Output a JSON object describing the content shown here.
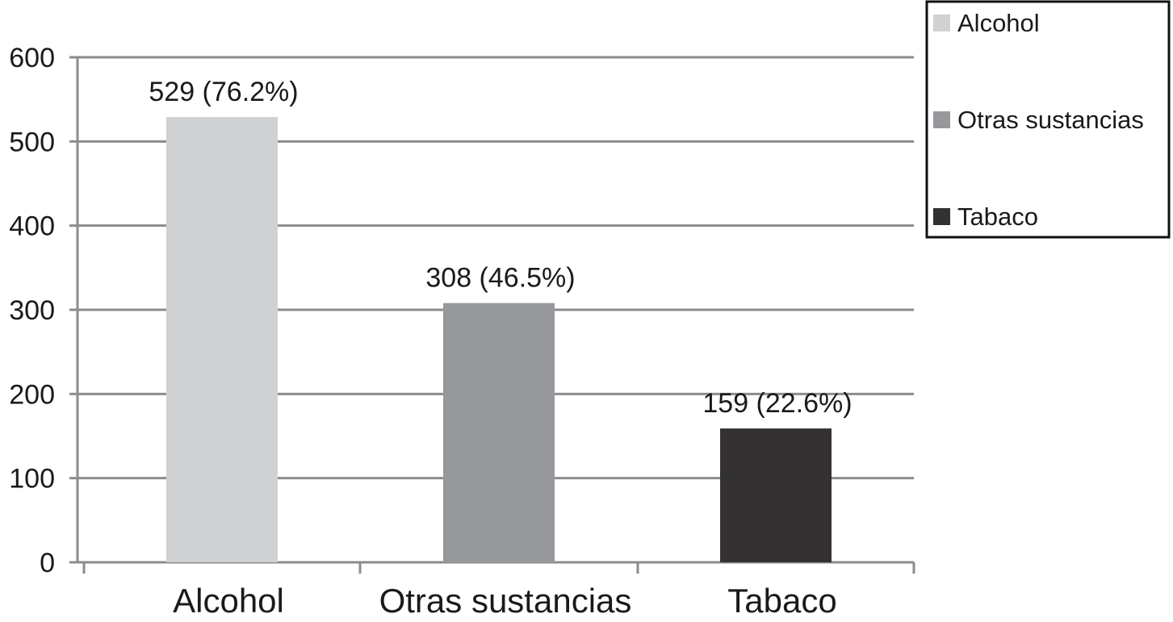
{
  "chart_data": {
    "type": "bar",
    "categories": [
      "Alcohol",
      "Otras sustancias",
      "Tabaco"
    ],
    "values": [
      529,
      308,
      159
    ],
    "data_labels": [
      "529 (76.2%)",
      "308 (46.5%)",
      "159 (22.6%)"
    ],
    "colors": [
      "#d0d1d3",
      "#97989b",
      "#333132"
    ],
    "ylim": [
      0,
      600
    ],
    "yticks": [
      0,
      100,
      200,
      300,
      400,
      500,
      600
    ],
    "grid": true,
    "legend": {
      "placement": "top-right",
      "entries": [
        "Alcohol",
        "Otras sustancias",
        "Tabaco"
      ]
    },
    "title": "",
    "xlabel": "",
    "ylabel": ""
  }
}
